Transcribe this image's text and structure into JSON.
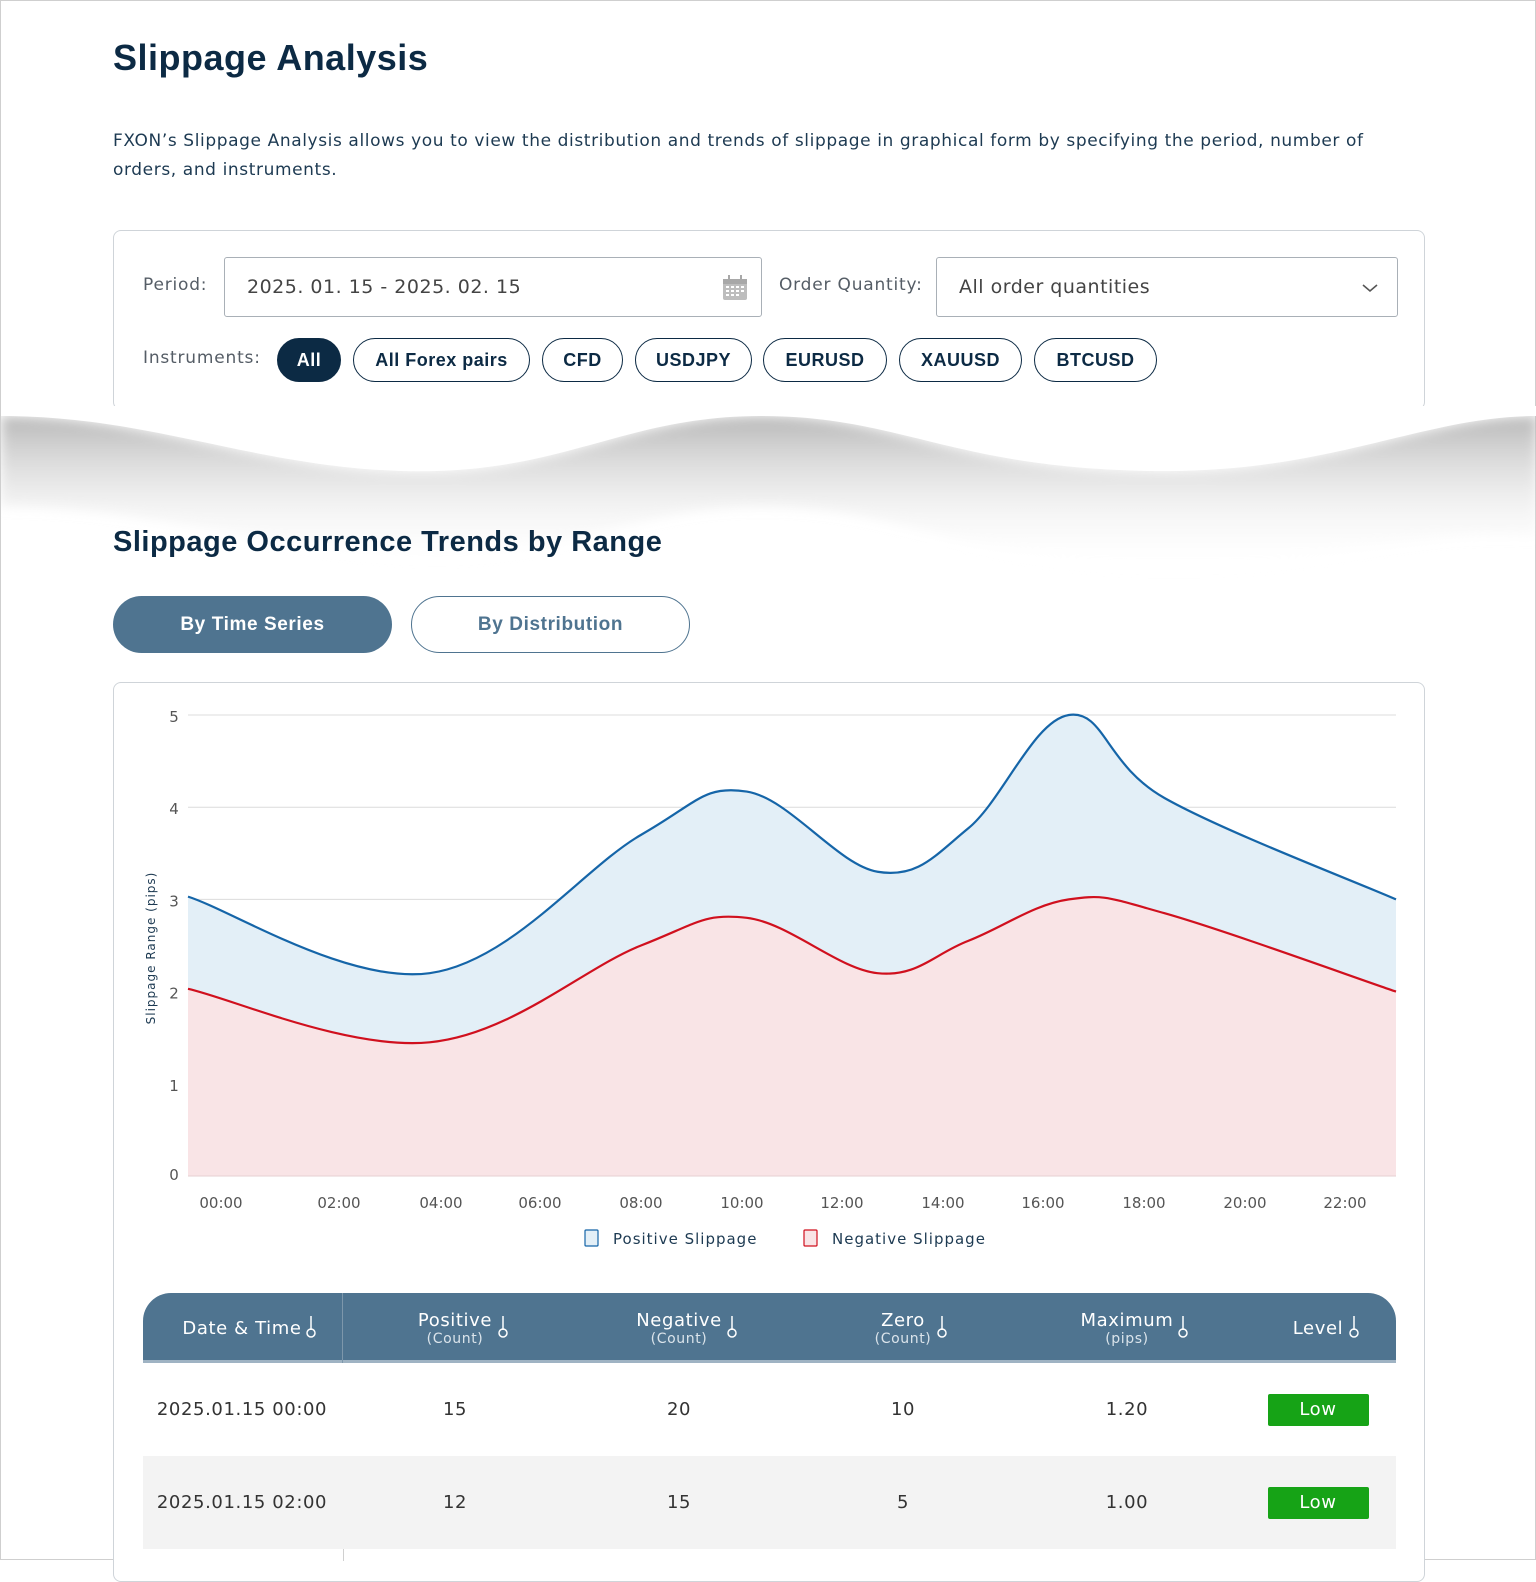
{
  "page": {
    "title": "Slippage Analysis",
    "description": "FXON’s Slippage Analysis allows you to view the distribution and trends of slippage in graphical form by specifying the period, number of orders, and instruments."
  },
  "filters": {
    "period_label": "Period:",
    "period_value": "2025. 01. 15 - 2025. 02. 15",
    "period_icon": "calendar-icon",
    "order_quantity_label": "Order Quantity:",
    "order_quantity_value": "All order quantities",
    "order_quantity_icon": "chevron-down-icon",
    "instruments_label": "Instruments:",
    "instruments": [
      {
        "label": "All",
        "active": true
      },
      {
        "label": "All Forex pairs",
        "active": false
      },
      {
        "label": "CFD",
        "active": false
      },
      {
        "label": "USDJPY",
        "active": false
      },
      {
        "label": "EURUSD",
        "active": false
      },
      {
        "label": "XAUUSD",
        "active": false
      },
      {
        "label": "BTCUSD",
        "active": false
      }
    ]
  },
  "section": {
    "title": "Slippage Occurrence Trends by Range",
    "tabs": [
      {
        "label": "By Time Series",
        "active": true
      },
      {
        "label": "By Distribution",
        "active": false
      }
    ]
  },
  "chart_data": {
    "type": "area",
    "ylabel": "Slippage Range (pips)",
    "xlabel": "",
    "ylim": [
      0,
      5
    ],
    "xlim_hours": [
      -1,
      23
    ],
    "yticks": [
      "0",
      "1",
      "2",
      "3",
      "4",
      "5"
    ],
    "xticks": [
      "00:00",
      "02:00",
      "04:00",
      "06:00",
      "08:00",
      "10:00",
      "12:00",
      "14:00",
      "16:00",
      "18:00",
      "20:00",
      "22:00"
    ],
    "grid": true,
    "legend": "bottom",
    "series": [
      {
        "name": "Positive Slippage",
        "color": "#1565a8",
        "fill": "#e3eff7",
        "points": [
          [
            -1,
            3.03
          ],
          [
            3.8,
            2.2
          ],
          [
            8,
            3.7
          ],
          [
            10.1,
            4.17
          ],
          [
            12.7,
            3.3
          ],
          [
            14.5,
            3.77
          ],
          [
            16.5,
            5.0
          ],
          [
            18.4,
            4.1
          ],
          [
            23,
            3.0
          ]
        ]
      },
      {
        "name": "Negative Slippage",
        "color": "#d0101e",
        "fill": "#f9e4e6",
        "points": [
          [
            -1,
            2.03
          ],
          [
            3.8,
            1.45
          ],
          [
            8,
            2.5
          ],
          [
            10.1,
            2.8
          ],
          [
            12.7,
            2.2
          ],
          [
            14.5,
            2.55
          ],
          [
            16.5,
            3.0
          ],
          [
            18.4,
            2.85
          ],
          [
            23,
            2.0
          ]
        ]
      }
    ]
  },
  "table": {
    "sort_icon": "sort-icon",
    "columns": [
      {
        "label": "Date & Time",
        "sub": ""
      },
      {
        "label": "Positive",
        "sub": "(Count)"
      },
      {
        "label": "Negative",
        "sub": "(Count)"
      },
      {
        "label": "Zero",
        "sub": "(Count)"
      },
      {
        "label": "Maximum",
        "sub": "(pips)"
      },
      {
        "label": "Level",
        "sub": ""
      }
    ],
    "rows": [
      [
        "2025.01.15 00:00",
        "15",
        "20",
        "10",
        "1.20",
        "Low"
      ],
      [
        "2025.01.15 02:00",
        "12",
        "15",
        "5",
        "1.00",
        "Low"
      ]
    ],
    "level_color": "#16a316"
  }
}
